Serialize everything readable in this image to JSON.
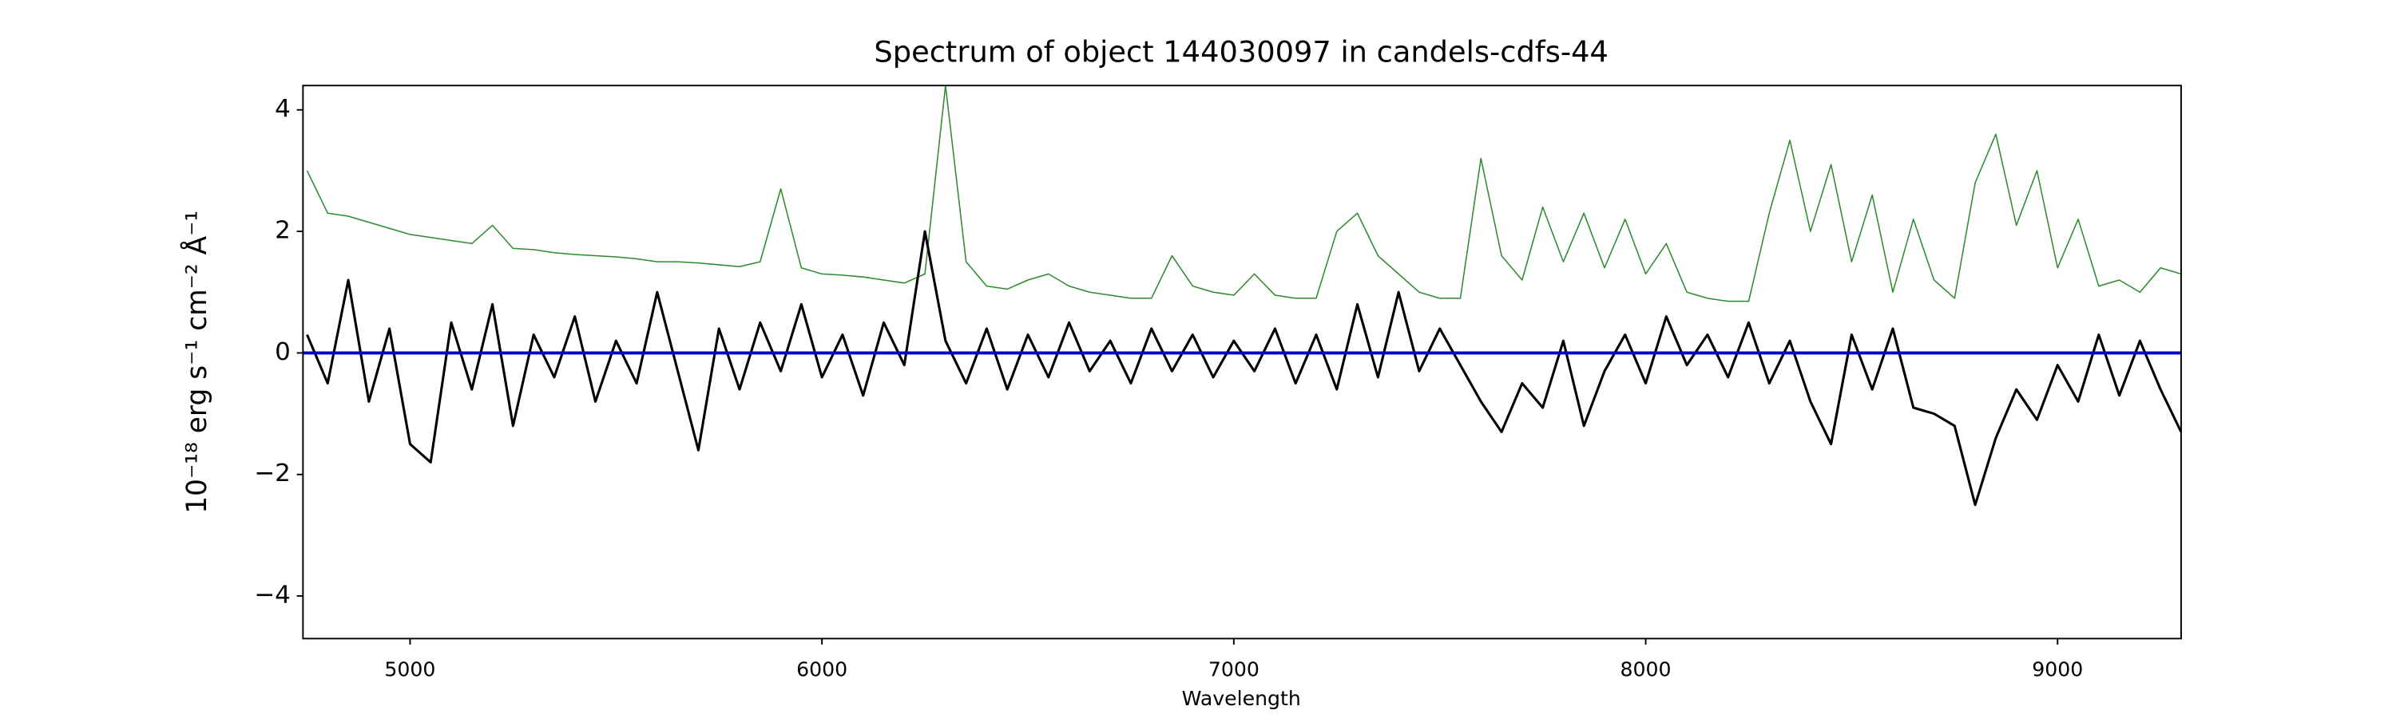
{
  "chart_data": {
    "type": "line",
    "title": "Spectrum of object 144030097 in candels-cdfs-44",
    "xlabel": "Wavelength",
    "ylabel": "10⁻¹⁸ erg s⁻¹ cm⁻² Å⁻¹",
    "xlim": [
      4740,
      9300
    ],
    "ylim": [
      -4.7,
      4.4
    ],
    "xticks": [
      5000,
      6000,
      7000,
      8000,
      9000
    ],
    "yticks": [
      {
        "value": -4,
        "label": "−4"
      },
      {
        "value": -2,
        "label": "−2"
      },
      0,
      2,
      4
    ],
    "grid": false,
    "x": [
      4750,
      4800,
      4850,
      4900,
      4950,
      5000,
      5050,
      5100,
      5150,
      5200,
      5250,
      5300,
      5350,
      5400,
      5450,
      5500,
      5550,
      5600,
      5650,
      5700,
      5750,
      5800,
      5850,
      5900,
      5950,
      6000,
      6050,
      6100,
      6150,
      6200,
      6250,
      6300,
      6350,
      6400,
      6450,
      6500,
      6550,
      6600,
      6650,
      6700,
      6750,
      6800,
      6850,
      6900,
      6950,
      7000,
      7050,
      7100,
      7150,
      7200,
      7250,
      7300,
      7350,
      7400,
      7450,
      7500,
      7550,
      7600,
      7650,
      7700,
      7750,
      7800,
      7850,
      7900,
      7950,
      8000,
      8050,
      8100,
      8150,
      8200,
      8250,
      8300,
      8350,
      8400,
      8450,
      8500,
      8550,
      8600,
      8650,
      8700,
      8750,
      8800,
      8850,
      8900,
      8950,
      9000,
      9050,
      9100,
      9150,
      9200,
      9250,
      9300
    ],
    "series": [
      {
        "color": "#2e8b2e",
        "width": 0.8,
        "values": [
          3.0,
          2.3,
          2.25,
          2.15,
          2.05,
          1.95,
          1.9,
          1.85,
          1.8,
          2.1,
          1.72,
          1.7,
          1.65,
          1.62,
          1.6,
          1.58,
          1.55,
          1.5,
          1.5,
          1.48,
          1.45,
          1.42,
          1.5,
          2.7,
          1.4,
          1.3,
          1.28,
          1.25,
          1.2,
          1.15,
          1.3,
          4.4,
          1.5,
          1.1,
          1.05,
          1.2,
          1.3,
          1.1,
          1.0,
          0.95,
          0.9,
          0.9,
          1.6,
          1.1,
          1.0,
          0.95,
          1.3,
          0.95,
          0.9,
          0.9,
          2.0,
          2.3,
          1.6,
          1.3,
          1.0,
          0.9,
          0.9,
          3.2,
          1.6,
          1.2,
          2.4,
          1.5,
          2.3,
          1.4,
          2.2,
          1.3,
          1.8,
          1.0,
          0.9,
          0.85,
          0.85,
          2.3,
          3.5,
          2.0,
          3.1,
          1.5,
          2.6,
          1.0,
          2.2,
          1.2,
          0.9,
          2.8,
          3.6,
          2.1,
          3.0,
          1.4,
          2.2,
          1.1,
          1.2,
          1.0,
          1.4,
          1.3
        ]
      },
      {
        "color": "#000000",
        "width": 1.6,
        "values": [
          0.3,
          -0.5,
          1.2,
          -0.8,
          0.4,
          -1.5,
          -1.8,
          0.5,
          -0.6,
          0.8,
          -1.2,
          0.3,
          -0.4,
          0.6,
          -0.8,
          0.2,
          -0.5,
          1.0,
          -0.3,
          -1.6,
          0.4,
          -0.6,
          0.5,
          -0.3,
          0.8,
          -0.4,
          0.3,
          -0.7,
          0.5,
          -0.2,
          2.0,
          0.2,
          -0.5,
          0.4,
          -0.6,
          0.3,
          -0.4,
          0.5,
          -0.3,
          0.2,
          -0.5,
          0.4,
          -0.3,
          0.3,
          -0.4,
          0.2,
          -0.3,
          0.4,
          -0.5,
          0.3,
          -0.6,
          0.8,
          -0.4,
          1.0,
          -0.3,
          0.4,
          -0.2,
          -0.8,
          -1.3,
          -0.5,
          -0.9,
          0.2,
          -1.2,
          -0.3,
          0.3,
          -0.5,
          0.6,
          -0.2,
          0.3,
          -0.4,
          0.5,
          -0.5,
          0.2,
          -0.8,
          -1.5,
          0.3,
          -0.6,
          0.4,
          -0.9,
          -1.0,
          -1.2,
          -2.5,
          -1.4,
          -0.6,
          -1.1,
          -0.2,
          -0.8,
          0.3,
          -0.7,
          0.2,
          -0.6,
          -1.3
        ]
      },
      {
        "color": "#0000cc",
        "width": 2,
        "x": [
          4740,
          9300
        ],
        "values": [
          0,
          0
        ]
      }
    ]
  }
}
